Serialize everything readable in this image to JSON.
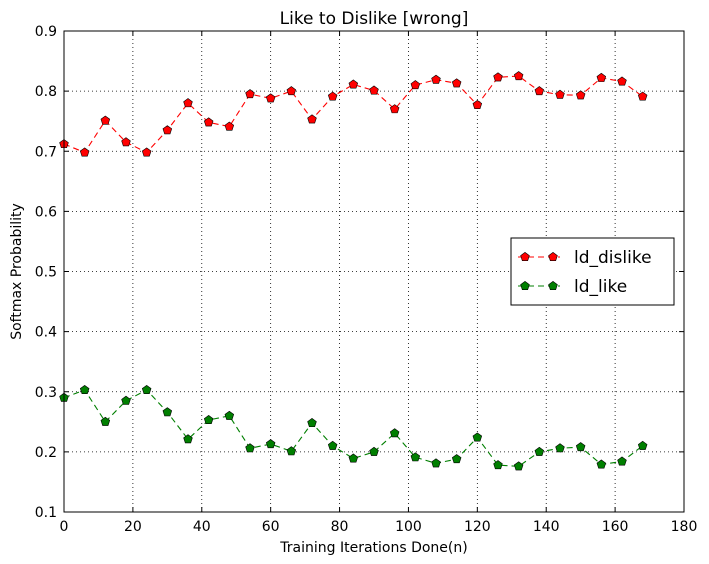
{
  "chart_data": {
    "type": "line",
    "title": "Like to Dislike [wrong]",
    "xlabel": "Training Iterations Done(n)",
    "ylabel": "Softmax Probability",
    "xlim": [
      0,
      180
    ],
    "ylim": [
      0.1,
      0.9
    ],
    "xticks": [
      0,
      20,
      40,
      60,
      80,
      100,
      120,
      140,
      160,
      180
    ],
    "yticks": [
      0.1,
      0.2,
      0.3,
      0.4,
      0.5,
      0.6,
      0.7,
      0.8,
      0.9
    ],
    "x_tick_labels": [
      "0",
      "20",
      "40",
      "60",
      "80",
      "100",
      "120",
      "140",
      "160",
      "180"
    ],
    "y_tick_labels": [
      "0.1",
      "0.2",
      "0.3",
      "0.4",
      "0.5",
      "0.6",
      "0.7",
      "0.8",
      "0.9"
    ],
    "grid": true,
    "legend_position": "center-right",
    "x": [
      0,
      6,
      12,
      18,
      24,
      30,
      36,
      42,
      48,
      54,
      60,
      66,
      72,
      78,
      84,
      90,
      96,
      102,
      108,
      114,
      120,
      126,
      132,
      138,
      144,
      150,
      156,
      162,
      168
    ],
    "series": [
      {
        "name": "ld_dislike",
        "color": "#ff0000",
        "values": [
          0.712,
          0.698,
          0.751,
          0.715,
          0.698,
          0.735,
          0.78,
          0.748,
          0.741,
          0.795,
          0.788,
          0.8,
          0.753,
          0.791,
          0.811,
          0.801,
          0.77,
          0.81,
          0.819,
          0.813,
          0.777,
          0.823,
          0.825,
          0.8,
          0.794,
          0.793,
          0.822,
          0.816,
          0.791
        ]
      },
      {
        "name": "ld_like",
        "color": "#007f00",
        "values": [
          0.29,
          0.303,
          0.25,
          0.285,
          0.303,
          0.266,
          0.221,
          0.253,
          0.26,
          0.206,
          0.213,
          0.201,
          0.248,
          0.21,
          0.189,
          0.2,
          0.231,
          0.191,
          0.181,
          0.188,
          0.224,
          0.178,
          0.176,
          0.2,
          0.206,
          0.208,
          0.179,
          0.184,
          0.21
        ]
      }
    ]
  }
}
